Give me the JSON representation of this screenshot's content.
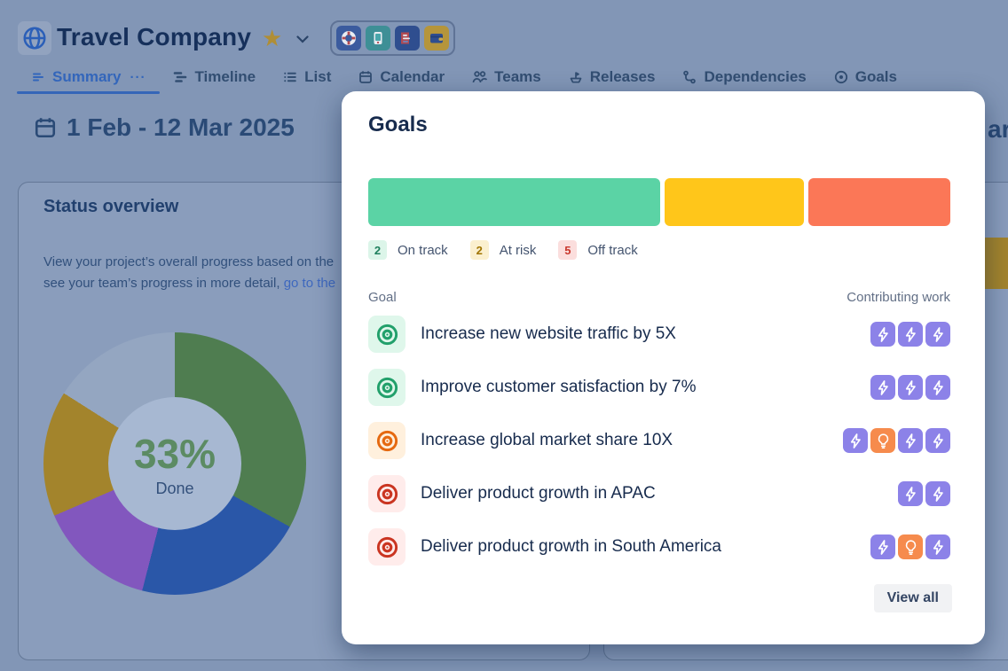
{
  "header": {
    "project_name": "Travel Company",
    "app_icons": [
      "lifebuoy",
      "phone",
      "browser",
      "wallet"
    ]
  },
  "tabs": [
    {
      "label": "Summary",
      "active": true
    },
    {
      "label": "Timeline",
      "active": false
    },
    {
      "label": "List",
      "active": false
    },
    {
      "label": "Calendar",
      "active": false
    },
    {
      "label": "Teams",
      "active": false
    },
    {
      "label": "Releases",
      "active": false
    },
    {
      "label": "Dependencies",
      "active": false
    },
    {
      "label": "Goals",
      "active": false
    }
  ],
  "content": {
    "date_range": "1 Feb - 12 Mar 2025",
    "heading_fragment": "ar",
    "status_overview": {
      "title": "Status overview",
      "line1": "View your project’s overall progress based on the",
      "line2_prefix": "see your team’s progress in more detail, ",
      "line2_link": "go to the"
    }
  },
  "chart_data": {
    "type": "pie",
    "subtype": "donut",
    "center_label": "33%",
    "center_sublabel": "Done",
    "center_label_color": "#5C8B63",
    "hole_color": "#A7B8D2",
    "segments": [
      {
        "name": "Done",
        "percent": 33,
        "color": "#4F7D50"
      },
      {
        "name": "segment-blue",
        "percent": 21,
        "color": "#2A57A8"
      },
      {
        "name": "segment-purple",
        "percent": 14.5,
        "color": "#8257BE"
      },
      {
        "name": "segment-gold",
        "percent": 15.5,
        "color": "#A3842C"
      },
      {
        "name": "segment-gray",
        "percent": 16,
        "color": "#94A6C1"
      }
    ]
  },
  "background": {
    "gold_bar_color": "#A3842C"
  },
  "modal": {
    "title": "Goals",
    "statuses": [
      {
        "label": "On track",
        "count": "2",
        "bar_color": "#5BD3A5",
        "bar_grow": 329,
        "badge_bg": "#DCF5E9",
        "badge_text": "#1D7F5C"
      },
      {
        "label": "At risk",
        "count": "2",
        "bar_color": "#FFC61A",
        "bar_grow": 157,
        "badge_bg": "#FBF0CF",
        "badge_text": "#A07400"
      },
      {
        "label": "Off track",
        "count": "5",
        "bar_color": "#FB7757",
        "bar_grow": 160,
        "badge_bg": "#FBDEDD",
        "badge_text": "#C9372C"
      }
    ],
    "table": {
      "goal_column": "Goal",
      "work_column": "Contributing work",
      "rows": [
        {
          "title": "Increase new website traffic by 5X",
          "status": "on-track",
          "icon_bg": "#DFF7EB",
          "icon_color": "#22A06B",
          "work_icons": [
            "bolt",
            "bolt",
            "bolt"
          ]
        },
        {
          "title": "Improve customer satisfaction by 7%",
          "status": "on-track",
          "icon_bg": "#DFF7EB",
          "icon_color": "#22A06B",
          "work_icons": [
            "bolt",
            "bolt",
            "bolt"
          ]
        },
        {
          "title": "Increase global market share 10X",
          "status": "at-risk",
          "icon_bg": "#FFF0DD",
          "icon_color": "#E56910",
          "work_icons": [
            "bolt",
            "bulb",
            "bolt",
            "bolt"
          ]
        },
        {
          "title": "Deliver product growth in APAC",
          "status": "off-track",
          "icon_bg": "#FFECEB",
          "icon_color": "#CA3521",
          "work_icons": [
            "bolt",
            "bolt"
          ]
        },
        {
          "title": "Deliver product growth in South America",
          "status": "off-track",
          "icon_bg": "#FFECEB",
          "icon_color": "#CA3521",
          "work_icons": [
            "bolt",
            "bulb",
            "bolt"
          ]
        }
      ]
    },
    "work_icon_colors": {
      "bolt": "#8C82E8",
      "bulb": "#F68B4D"
    },
    "view_all_label": "View all"
  }
}
